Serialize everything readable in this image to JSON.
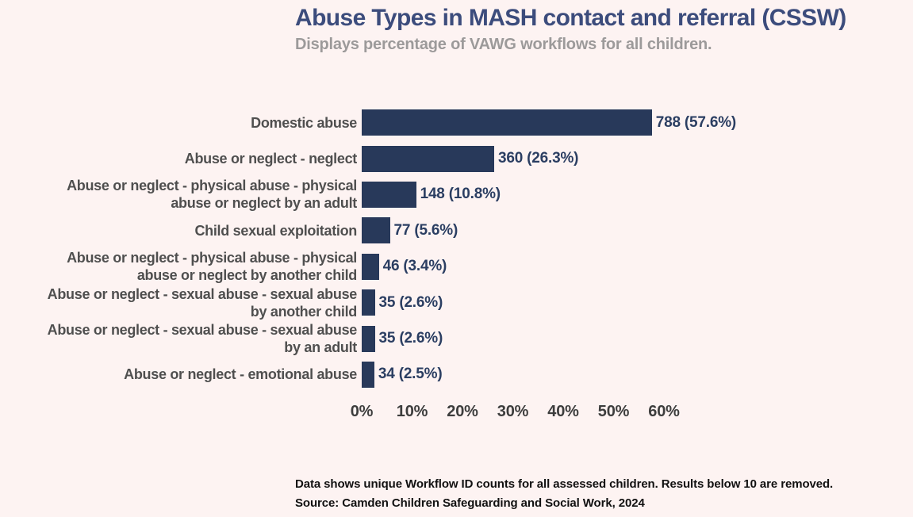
{
  "header": {
    "title": "Abuse Types in MASH contact and referral (CSSW)",
    "subtitle": "Displays percentage of VAWG workflows for all children."
  },
  "chart_data": {
    "type": "bar",
    "orientation": "horizontal",
    "title": "Abuse Types in MASH contact and referral (CSSW)",
    "subtitle": "Displays percentage of VAWG workflows for all children.",
    "categories": [
      "Domestic abuse",
      "Abuse or neglect - neglect",
      "Abuse or neglect - physical abuse - physical\nabuse or neglect by an adult",
      "Child sexual exploitation",
      "Abuse or neglect - physical abuse - physical\nabuse or neglect by another child",
      "Abuse or neglect - sexual abuse - sexual abuse\nby another child",
      "Abuse or neglect - sexual abuse - sexual abuse\nby an adult",
      "Abuse or neglect - emotional abuse"
    ],
    "counts": [
      788,
      360,
      148,
      77,
      46,
      35,
      35,
      34
    ],
    "values_pct": [
      57.6,
      26.3,
      10.8,
      5.6,
      3.4,
      2.6,
      2.6,
      2.5
    ],
    "value_labels": [
      "788 (57.6%)",
      "360 (26.3%)",
      "148 (10.8%)",
      "77 (5.6%)",
      "46 (3.4%)",
      "35 (2.6%)",
      "35 (2.6%)",
      "34 (2.5%)"
    ],
    "x_ticks": [
      "0%",
      "10%",
      "20%",
      "30%",
      "40%",
      "50%",
      "60%"
    ],
    "xlim": [
      0,
      60
    ],
    "xlabel": "",
    "ylabel": "",
    "grid": false,
    "legend_position": "none",
    "bar_color": "#28395a"
  },
  "footer": {
    "note": "Data shows unique Workflow ID counts for all assessed children. Results below 10 are removed.",
    "source": "Source: Camden Children Safeguarding and Social Work, 2024"
  },
  "colors": {
    "background": "#fdf3f2",
    "bar": "#28395a",
    "title": "#3c4c7c",
    "subtitle": "#9c9a9a",
    "category_label": "#4f4f4f",
    "value_label": "#2b3e62",
    "tick_label": "#3d3d3d",
    "footer_text": "#111111"
  }
}
